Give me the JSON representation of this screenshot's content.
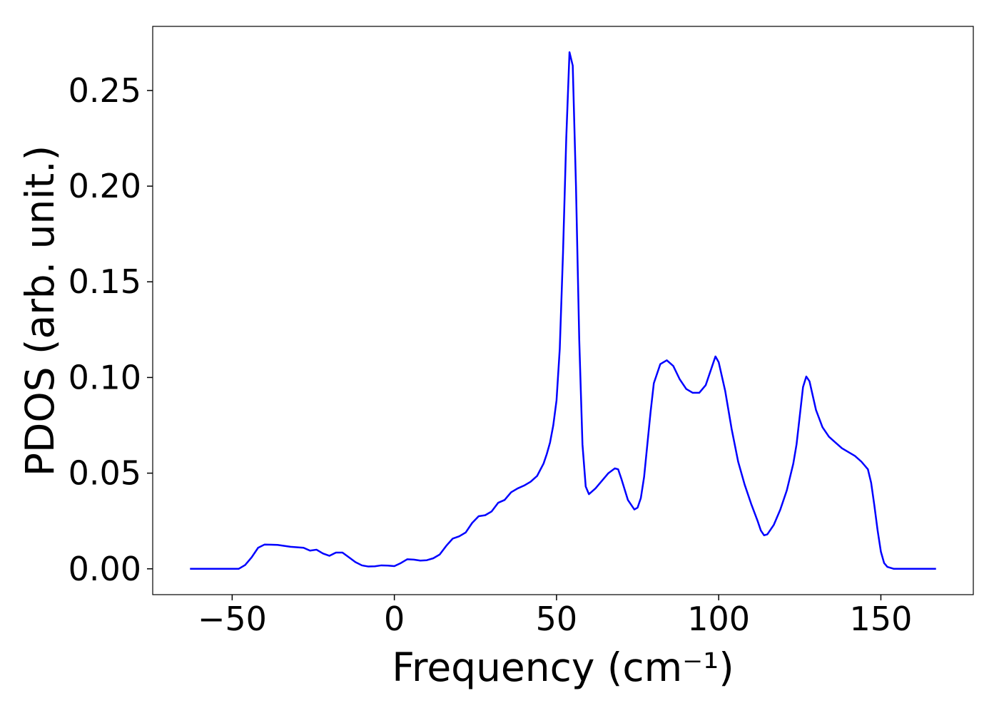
{
  "chart_data": {
    "type": "line",
    "xlabel": "Frequency (cm⁻¹)",
    "ylabel": "PDOS (arb. unit.)",
    "xlim": [
      -74.5,
      178.5
    ],
    "ylim": [
      -0.0135,
      0.2835
    ],
    "xticks": [
      {
        "value": -50,
        "label": "−50"
      },
      0,
      50,
      100,
      150
    ],
    "yticks": [
      {
        "value": 0,
        "label": "0.00"
      },
      {
        "value": 0.05,
        "label": "0.05"
      },
      {
        "value": 0.1,
        "label": "0.10"
      },
      {
        "value": 0.15,
        "label": "0.15"
      },
      {
        "value": 0.2,
        "label": "0.20"
      },
      {
        "value": 0.25,
        "label": "0.25"
      }
    ],
    "grid": false,
    "series": [
      {
        "color": "#0000ff",
        "x": [
          -63,
          -48,
          -46,
          -44,
          -42,
          -40,
          -36,
          -32,
          -28,
          -26,
          -24,
          -22,
          -20,
          -18,
          -16,
          -14,
          -12,
          -10,
          -8,
          -6,
          -4,
          -2,
          0,
          2,
          4,
          6,
          8,
          10,
          12,
          14,
          16,
          18,
          20,
          22,
          24,
          26,
          28,
          30,
          32,
          34,
          36,
          38,
          40,
          42,
          44,
          46,
          47,
          48,
          49,
          50,
          51,
          52,
          53,
          54,
          55,
          56,
          57,
          58,
          59,
          60,
          62,
          64,
          66,
          68,
          69,
          70,
          72,
          74,
          75,
          76,
          77,
          78,
          79,
          80,
          82,
          84,
          86,
          88,
          90,
          92,
          94,
          96,
          98,
          99,
          100,
          102,
          104,
          106,
          108,
          110,
          112,
          113,
          114,
          115,
          117,
          119,
          121,
          123,
          124,
          125,
          126,
          127,
          128,
          130,
          132,
          134,
          136,
          138,
          140,
          142,
          144,
          146,
          147,
          148,
          149,
          150,
          151,
          152,
          154,
          167
        ],
        "values": [
          0,
          0,
          0.002,
          0.006,
          0.011,
          0.0127,
          0.0125,
          0.0115,
          0.011,
          0.0095,
          0.01,
          0.008,
          0.0068,
          0.0085,
          0.0085,
          0.006,
          0.0035,
          0.0018,
          0.0012,
          0.0013,
          0.0018,
          0.0017,
          0.0014,
          0.003,
          0.005,
          0.0048,
          0.0043,
          0.0045,
          0.0055,
          0.0075,
          0.012,
          0.0158,
          0.017,
          0.019,
          0.024,
          0.0275,
          0.028,
          0.03,
          0.0345,
          0.036,
          0.04,
          0.042,
          0.0435,
          0.0455,
          0.0485,
          0.055,
          0.06,
          0.066,
          0.075,
          0.088,
          0.115,
          0.165,
          0.225,
          0.27,
          0.263,
          0.2,
          0.12,
          0.065,
          0.043,
          0.039,
          0.042,
          0.046,
          0.05,
          0.0525,
          0.052,
          0.047,
          0.036,
          0.031,
          0.032,
          0.037,
          0.048,
          0.065,
          0.082,
          0.097,
          0.107,
          0.109,
          0.106,
          0.099,
          0.094,
          0.092,
          0.092,
          0.096,
          0.106,
          0.111,
          0.108,
          0.093,
          0.073,
          0.056,
          0.044,
          0.034,
          0.025,
          0.02,
          0.0175,
          0.018,
          0.023,
          0.031,
          0.041,
          0.055,
          0.065,
          0.08,
          0.095,
          0.1005,
          0.098,
          0.083,
          0.074,
          0.069,
          0.066,
          0.063,
          0.061,
          0.059,
          0.056,
          0.052,
          0.045,
          0.033,
          0.02,
          0.009,
          0.003,
          0.001,
          0,
          0
        ]
      }
    ]
  }
}
